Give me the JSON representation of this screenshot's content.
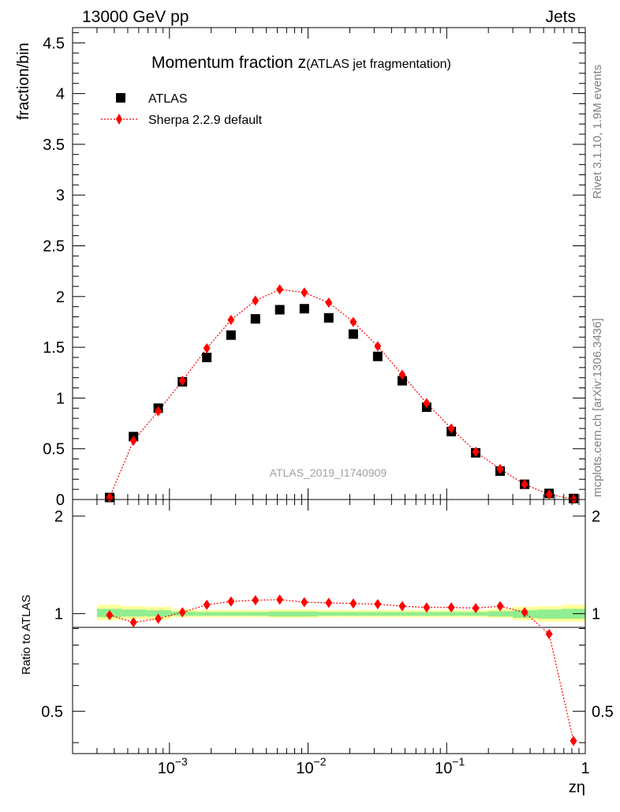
{
  "header": {
    "left": "13000 GeV pp",
    "right": "Jets"
  },
  "side_labels": {
    "rivet": "Rivet 3.1.10,  1.9M events",
    "mcplots": "mcplots.cern.ch [arXiv:1306.3436]"
  },
  "chart_data": [
    {
      "id": "main",
      "type": "scatter",
      "title_main": "Momentum fraction z",
      "title_sub": "(ATLAS jet fragmentation)",
      "ylabel": "fraction/bin",
      "analysis_label": "ATLAS_2019_I1740909",
      "x_scale": "log",
      "xlim": [
        0.0002,
        1
      ],
      "ylim": [
        0,
        4.65
      ],
      "yticks": [
        0,
        0.5,
        1,
        1.5,
        2,
        2.5,
        3,
        3.5,
        4,
        4.5
      ],
      "ytick_labels": [
        "0",
        "0.5",
        "1",
        "1.5",
        "2",
        "2.5",
        "3",
        "3.5",
        "4",
        "4.5"
      ],
      "legend_position": "top-left",
      "series": [
        {
          "name": "ATLAS",
          "marker": "square",
          "color": "#000000",
          "x": [
            0.00037,
            0.00055,
            0.00083,
            0.00124,
            0.00186,
            0.00278,
            0.00417,
            0.00625,
            0.0094,
            0.0141,
            0.0212,
            0.0318,
            0.0478,
            0.0717,
            0.108,
            0.162,
            0.243,
            0.365,
            0.548,
            0.822
          ],
          "y": [
            0.02,
            0.62,
            0.9,
            1.16,
            1.4,
            1.62,
            1.78,
            1.87,
            1.88,
            1.79,
            1.63,
            1.41,
            1.17,
            0.91,
            0.67,
            0.46,
            0.28,
            0.15,
            0.06,
            0.01
          ]
        },
        {
          "name": "Sherpa 2.2.9 default",
          "marker": "diamond",
          "line": "dotted",
          "color": "#ff0000",
          "x": [
            0.00037,
            0.00055,
            0.00083,
            0.00124,
            0.00186,
            0.00278,
            0.00417,
            0.00625,
            0.0094,
            0.0141,
            0.0212,
            0.0318,
            0.0478,
            0.0717,
            0.108,
            0.162,
            0.243,
            0.365,
            0.548,
            0.822
          ],
          "y": [
            0.02,
            0.58,
            0.87,
            1.17,
            1.49,
            1.77,
            1.96,
            2.07,
            2.04,
            1.94,
            1.75,
            1.51,
            1.23,
            0.95,
            0.7,
            0.47,
            0.3,
            0.15,
            0.05,
            0.004
          ]
        }
      ]
    },
    {
      "id": "ratio",
      "type": "line",
      "ylabel": "Ratio to ATLAS",
      "xlabel": "zη",
      "x_scale": "log",
      "xlim": [
        0.0002,
        1
      ],
      "ylim": [
        0.37,
        2.25
      ],
      "yticks": [
        0.5,
        1,
        2
      ],
      "ytick_labels": [
        "0.5",
        "1",
        "2"
      ],
      "xticks": [
        0.001,
        0.01,
        0.1,
        1
      ],
      "xtick_labels": [
        "10",
        "10",
        "10",
        "1"
      ],
      "xtick_exponents": [
        "−3",
        "−2",
        "−1",
        ""
      ],
      "bands": {
        "x_edges": [
          0.0003,
          0.00045,
          0.00068,
          0.00103,
          0.00155,
          0.0023,
          0.0035,
          0.0052,
          0.0078,
          0.0117,
          0.0176,
          0.0264,
          0.0396,
          0.0594,
          0.089,
          0.134,
          0.2,
          0.3,
          0.45,
          0.68,
          1
        ],
        "outer_lo": [
          0.955,
          0.96,
          0.96,
          0.975,
          0.975,
          0.975,
          0.975,
          0.97,
          0.97,
          0.975,
          0.975,
          0.975,
          0.975,
          0.975,
          0.975,
          0.975,
          0.97,
          0.955,
          0.945,
          0.945
        ],
        "outer_hi": [
          1.065,
          1.055,
          1.05,
          1.03,
          1.025,
          1.025,
          1.025,
          1.03,
          1.03,
          1.025,
          1.025,
          1.025,
          1.025,
          1.025,
          1.025,
          1.025,
          1.035,
          1.05,
          1.055,
          1.065
        ],
        "inner_lo": [
          0.975,
          0.98,
          0.98,
          0.985,
          0.985,
          0.985,
          0.985,
          0.98,
          0.98,
          0.985,
          0.985,
          0.985,
          0.985,
          0.985,
          0.985,
          0.985,
          0.98,
          0.97,
          0.965,
          0.965
        ],
        "inner_hi": [
          1.035,
          1.03,
          1.025,
          1.015,
          1.012,
          1.012,
          1.012,
          1.015,
          1.015,
          1.012,
          1.012,
          1.012,
          1.012,
          1.012,
          1.012,
          1.012,
          1.018,
          1.025,
          1.03,
          1.035
        ],
        "outer_color": "#ffff99",
        "inner_color": "#90ee90"
      },
      "series": [
        {
          "name": "Sherpa 2.2.9 default",
          "marker": "diamond",
          "line": "dotted",
          "color": "#ff0000",
          "x": [
            0.00037,
            0.00055,
            0.00083,
            0.00124,
            0.00186,
            0.00278,
            0.00417,
            0.00625,
            0.0094,
            0.0141,
            0.0212,
            0.0318,
            0.0478,
            0.0717,
            0.108,
            0.162,
            0.243,
            0.365,
            0.548,
            0.822
          ],
          "y": [
            0.99,
            0.94,
            0.965,
            1.01,
            1.065,
            1.09,
            1.1,
            1.105,
            1.085,
            1.08,
            1.075,
            1.07,
            1.055,
            1.045,
            1.045,
            1.04,
            1.055,
            1.01,
            0.865,
            0.405
          ]
        }
      ]
    }
  ]
}
